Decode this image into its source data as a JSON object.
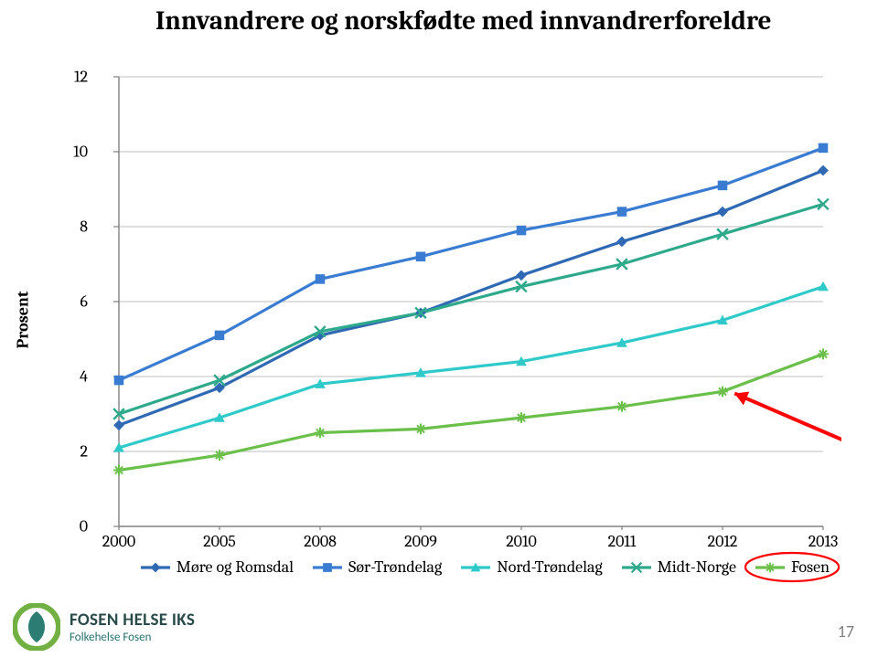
{
  "title": "Innvandrere og norskfødte med innvandrerforeldre",
  "title_fontsize": 29,
  "ylabel": "Prosent",
  "page_number": "17",
  "background_color": "#ffffff",
  "logo": {
    "main": "FOSEN HELSE IKS",
    "sub": "Folkehelse Fosen",
    "green": "#72b043",
    "teal": "#2b7c73"
  },
  "chart": {
    "type": "line",
    "xlabels": [
      "2000",
      "2005",
      "2008",
      "2009",
      "2010",
      "2011",
      "2012",
      "2013"
    ],
    "ylim": [
      0,
      12
    ],
    "ytick_step": 2,
    "yticks": [
      "0",
      "2",
      "4",
      "6",
      "8",
      "10",
      "12"
    ],
    "grid_color": "#bfbfbf",
    "axis_color": "#808080",
    "tick_fontsize": 18,
    "series": [
      {
        "name": "Møre og Romsdal",
        "marker": "diamond",
        "color": "#2f69b3",
        "values": [
          2.7,
          3.7,
          5.1,
          5.7,
          6.7,
          7.6,
          8.4,
          9.5
        ]
      },
      {
        "name": "Sør-Trøndelag",
        "marker": "square",
        "color": "#3a7cd2",
        "values": [
          3.9,
          5.1,
          6.6,
          7.2,
          7.9,
          8.4,
          9.1,
          10.1
        ]
      },
      {
        "name": "Nord-Trøndelag",
        "marker": "triangle",
        "color": "#2fc9c9",
        "values": [
          2.1,
          2.9,
          3.8,
          4.1,
          4.4,
          4.9,
          5.5,
          6.4
        ]
      },
      {
        "name": "Midt-Norge",
        "marker": "x",
        "color": "#2fa98b",
        "values": [
          3.0,
          3.9,
          5.2,
          5.7,
          6.4,
          7.0,
          7.8,
          8.6
        ]
      },
      {
        "name": "Fosen",
        "marker": "asterisk",
        "color": "#6bbf4b",
        "values": [
          1.5,
          1.9,
          2.5,
          2.6,
          2.9,
          3.2,
          3.6,
          4.6
        ]
      }
    ],
    "line_width": 3.2,
    "marker_size": 9
  },
  "annotation_arrow": {
    "color": "#ff0000",
    "width": 4,
    "from_x": 7.2,
    "from_y": 2.3,
    "to_x": 6.12,
    "to_y": 3.55
  },
  "fosen_circle": {
    "color": "#ff0000",
    "width": 2.2
  },
  "legend_fontsize": 18
}
